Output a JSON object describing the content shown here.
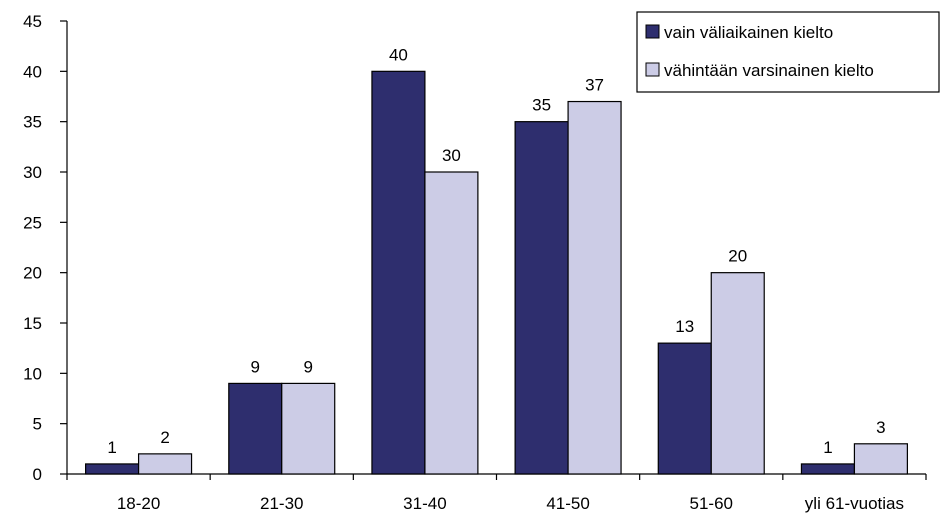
{
  "chart_data": {
    "type": "bar",
    "title": "",
    "xlabel": "",
    "ylabel": "",
    "categories": [
      "18-20",
      "21-30",
      "31-40",
      "41-50",
      "51-60",
      "yli 61-vuotias"
    ],
    "series": [
      {
        "name": "vain väliaikainen kielto",
        "values": [
          1,
          9,
          40,
          35,
          13,
          1
        ],
        "color": "#2e2e6e"
      },
      {
        "name": "vähintään varsinainen kielto",
        "values": [
          2,
          9,
          30,
          37,
          20,
          3
        ],
        "color": "#cccce6"
      }
    ],
    "ylim": [
      0,
      45
    ],
    "yticks": [
      0,
      5,
      10,
      15,
      20,
      25,
      30,
      35,
      40,
      45
    ],
    "grid": false,
    "legend_position": "top-right"
  }
}
